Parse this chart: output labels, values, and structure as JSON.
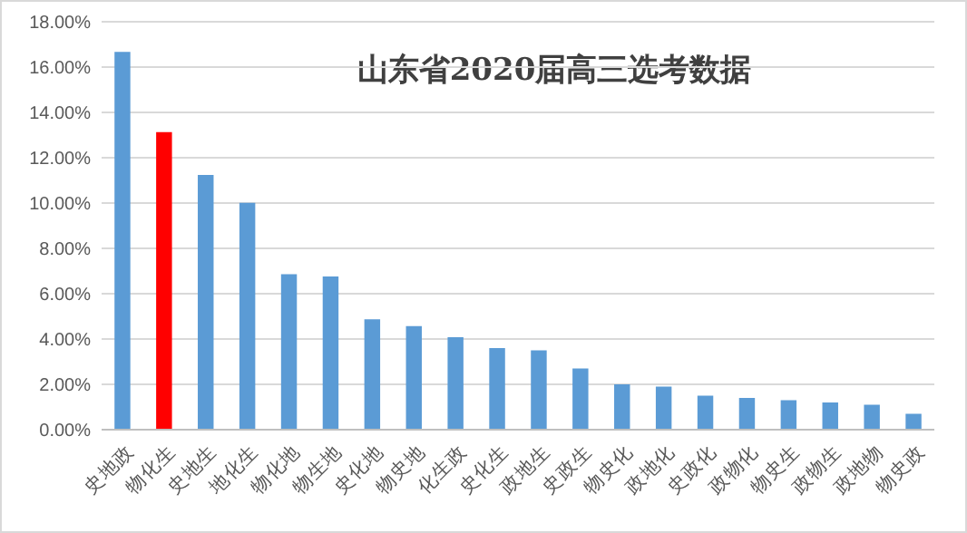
{
  "chart_data": {
    "type": "bar",
    "title": "山东省2020届高三选考数据",
    "categories": [
      "史地政",
      "物化生",
      "史地生",
      "地化生",
      "物化地",
      "物生地",
      "史化地",
      "物史地",
      "化生政",
      "史化生",
      "政地生",
      "史政生",
      "物史化",
      "政地化",
      "史政化",
      "政物化",
      "物史生",
      "政物生",
      "政地物",
      "物史政"
    ],
    "values": [
      16.67,
      13.13,
      11.24,
      10.01,
      6.86,
      6.76,
      4.87,
      4.57,
      4.08,
      3.6,
      3.5,
      2.7,
      2.0,
      1.9,
      1.5,
      1.4,
      1.3,
      1.2,
      1.1,
      0.7
    ],
    "colors": [
      "#5b9bd5",
      "#ff0000",
      "#5b9bd5",
      "#5b9bd5",
      "#5b9bd5",
      "#5b9bd5",
      "#5b9bd5",
      "#5b9bd5",
      "#5b9bd5",
      "#5b9bd5",
      "#5b9bd5",
      "#5b9bd5",
      "#5b9bd5",
      "#5b9bd5",
      "#5b9bd5",
      "#5b9bd5",
      "#5b9bd5",
      "#5b9bd5",
      "#5b9bd5",
      "#5b9bd5"
    ],
    "ylim": [
      0,
      18
    ],
    "yticks": [
      {
        "value": 0,
        "label": "0.00%"
      },
      {
        "value": 2,
        "label": "2.00%"
      },
      {
        "value": 4,
        "label": "4.00%"
      },
      {
        "value": 6,
        "label": "6.00%"
      },
      {
        "value": 8,
        "label": "8.00%"
      },
      {
        "value": 10,
        "label": "10.00%"
      },
      {
        "value": 12,
        "label": "12.00%"
      },
      {
        "value": 14,
        "label": "14.00%"
      },
      {
        "value": 16,
        "label": "16.00%"
      },
      {
        "value": 18,
        "label": "18.00%"
      }
    ],
    "grid": "y"
  }
}
